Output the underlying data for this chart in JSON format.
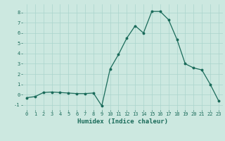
{
  "x": [
    0,
    1,
    2,
    3,
    4,
    5,
    6,
    7,
    8,
    9,
    10,
    11,
    12,
    13,
    14,
    15,
    16,
    17,
    18,
    19,
    20,
    21,
    22,
    23
  ],
  "y": [
    -0.3,
    -0.2,
    0.2,
    0.25,
    0.2,
    0.15,
    0.1,
    0.1,
    0.15,
    -1.1,
    2.5,
    3.9,
    5.5,
    6.7,
    6.0,
    8.1,
    8.1,
    7.3,
    5.4,
    3.0,
    2.6,
    2.4,
    1.0,
    -0.6
  ],
  "line_color": "#1a6b5a",
  "marker": "o",
  "markersize": 1.8,
  "linewidth": 0.9,
  "xlabel": "Humidex (Indice chaleur)",
  "bg_color": "#cce8e0",
  "grid_color": "#aad4cc",
  "ylim": [
    -1.5,
    8.8
  ],
  "xlim": [
    -0.5,
    23.5
  ],
  "yticks": [
    -1,
    0,
    1,
    2,
    3,
    4,
    5,
    6,
    7,
    8
  ],
  "xticks": [
    0,
    1,
    2,
    3,
    4,
    5,
    6,
    7,
    8,
    9,
    10,
    11,
    12,
    13,
    14,
    15,
    16,
    17,
    18,
    19,
    20,
    21,
    22,
    23
  ],
  "tick_fontsize": 5.0,
  "xlabel_fontsize": 6.5
}
